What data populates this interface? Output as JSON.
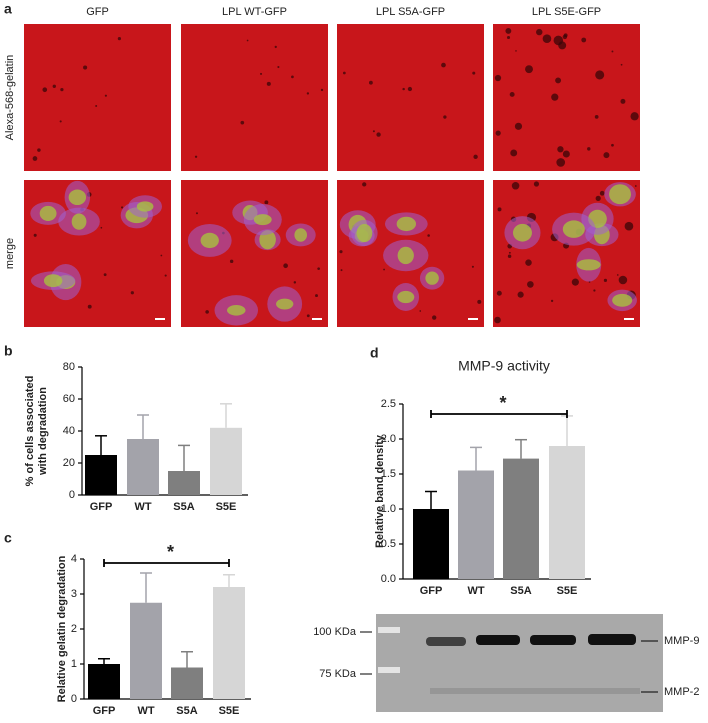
{
  "panel_letters": [
    "a",
    "b",
    "c",
    "d"
  ],
  "images": {
    "columns": [
      "GFP",
      "LPL WT-GFP",
      "LPL S5A-GFP",
      "LPL S5E-GFP"
    ],
    "rows": [
      "Alexa-568-gelatin",
      "merge"
    ]
  },
  "blot": {
    "markers": [
      "100 KDa",
      "75 KDa"
    ],
    "bands": [
      "MMP-9",
      "MMP-2"
    ]
  },
  "chart_data": [
    {
      "type": "bar",
      "ylabel": [
        "% of cells associated",
        "with degradation"
      ],
      "categories": [
        "GFP",
        "WT",
        "S5A",
        "S5E"
      ],
      "series": [
        {
          "values": [
            25,
            35,
            15,
            42
          ],
          "errors": [
            12,
            15,
            16,
            15
          ]
        }
      ],
      "colors": [
        "#000000",
        "#a3a3aa",
        "#7f7f7f",
        "#d6d6d6"
      ],
      "ylim": [
        0,
        80
      ],
      "yticks": [
        0,
        20,
        40,
        60,
        80
      ]
    },
    {
      "type": "bar",
      "ylabel": "Relative gelatin degradation",
      "categories": [
        "GFP",
        "WT",
        "S5A",
        "S5E"
      ],
      "series": [
        {
          "values": [
            1.0,
            2.75,
            0.9,
            3.2
          ],
          "errors": [
            0.15,
            0.85,
            0.45,
            0.35
          ]
        }
      ],
      "colors": [
        "#000000",
        "#a3a3aa",
        "#7f7f7f",
        "#d6d6d6"
      ],
      "ylim": [
        0,
        4
      ],
      "yticks": [
        0,
        1,
        2,
        3,
        4
      ],
      "significance": "*"
    },
    {
      "type": "bar",
      "title": "MMP-9 activity",
      "ylabel": "Relative band density",
      "categories": [
        "GFP",
        "WT",
        "S5A",
        "S5E"
      ],
      "series": [
        {
          "values": [
            1.0,
            1.55,
            1.72,
            1.9
          ],
          "errors": [
            0.25,
            0.33,
            0.27,
            0.43
          ]
        }
      ],
      "colors": [
        "#000000",
        "#a3a3aa",
        "#7f7f7f",
        "#d6d6d6"
      ],
      "ylim": [
        0,
        2.5
      ],
      "yticks": [
        {
          "value": 0,
          "label": "0.0"
        },
        0.5,
        {
          "value": 1,
          "label": "1.0"
        },
        1.5,
        {
          "value": 2,
          "label": "2.0"
        },
        2.5
      ],
      "significance": "*"
    }
  ]
}
